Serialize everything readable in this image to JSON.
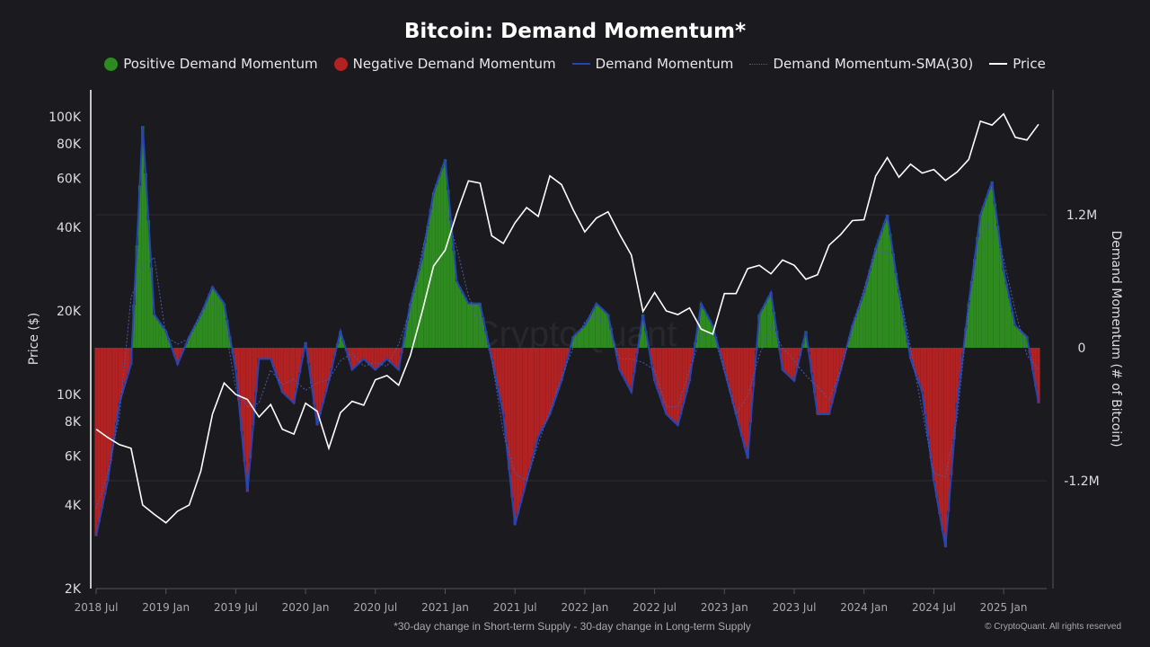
{
  "chart_data": {
    "type": "bar",
    "title": "Bitcoin: Demand Momentum*",
    "legend": [
      {
        "name": "Positive Demand Momentum",
        "color": "#2e8b1f",
        "kind": "dot"
      },
      {
        "name": "Negative Demand Momentum",
        "color": "#b22222",
        "kind": "dot"
      },
      {
        "name": "Demand Momentum",
        "color": "#2545b5",
        "kind": "line"
      },
      {
        "name": "Demand Momentum-SMA(30)",
        "color": "#4a5ab0",
        "kind": "dotted"
      },
      {
        "name": "Price",
        "color": "#ffffff",
        "kind": "line"
      }
    ],
    "legend_placement": "top",
    "ylabel_left": "Price ($)",
    "ylabel_right": "Demand Momentum (# of Bitcoin)",
    "y_left_scale": "log",
    "y_left_range": [
      2000,
      130000
    ],
    "y_left_ticks": [
      {
        "v": 2000,
        "label": "2K"
      },
      {
        "v": 4000,
        "label": "4K"
      },
      {
        "v": 6000,
        "label": "6K"
      },
      {
        "v": 8000,
        "label": "8K"
      },
      {
        "v": 10000,
        "label": "10K"
      },
      {
        "v": 20000,
        "label": "20K"
      },
      {
        "v": 40000,
        "label": "40K"
      },
      {
        "v": 60000,
        "label": "60K"
      },
      {
        "v": 80000,
        "label": "80K"
      },
      {
        "v": 100000,
        "label": "100K"
      }
    ],
    "y_right_range": [
      -2200000,
      2400000
    ],
    "y_right_ticks": [
      {
        "v": 1200000,
        "label": "1.2M"
      },
      {
        "v": 0,
        "label": "0"
      },
      {
        "v": -1200000,
        "label": "-1.2M"
      }
    ],
    "x_ticks": [
      "2018 Jul",
      "2019 Jan",
      "2019 Jul",
      "2020 Jan",
      "2020 Jul",
      "2021 Jan",
      "2021 Jul",
      "2022 Jan",
      "2022 Jul",
      "2023 Jan",
      "2023 Jul",
      "2024 Jan",
      "2024 Jul",
      "2025 Jan"
    ],
    "grid": "horizontal at right-axis ticks",
    "start_month": "2018-07",
    "dates_note_months": "monthly from 2018-07 to 2025-04",
    "price": [
      7500,
      7000,
      6600,
      6400,
      4000,
      3700,
      3450,
      3800,
      4000,
      5300,
      8500,
      11000,
      10000,
      9600,
      8300,
      9200,
      7500,
      7200,
      9300,
      8700,
      6400,
      8600,
      9450,
      9150,
      11300,
      11700,
      10800,
      13800,
      19700,
      29000,
      33100,
      45000,
      58800,
      57700,
      37300,
      35000,
      41500,
      47100,
      43800,
      61300,
      57000,
      46300,
      38500,
      43200,
      45500,
      37700,
      31800,
      19900,
      23300,
      20000,
      19400,
      20500,
      17200,
      16500,
      23100,
      23100,
      28400,
      29200,
      27200,
      30500,
      29200,
      26000,
      27000,
      34500,
      37700,
      42300,
      42600,
      61200,
      71300,
      60600,
      67500,
      62700,
      64600,
      59000,
      63300,
      70200,
      96400,
      93400,
      102400,
      84400,
      82500,
      94000
    ],
    "demand_momentum": [
      -1700000,
      -1200000,
      -500000,
      -150000,
      2000000,
      300000,
      150000,
      -150000,
      100000,
      300000,
      550000,
      400000,
      -200000,
      -1300000,
      -100000,
      -100000,
      -400000,
      -500000,
      50000,
      -700000,
      -300000,
      150000,
      -200000,
      -100000,
      -200000,
      -100000,
      -200000,
      400000,
      800000,
      1400000,
      1700000,
      600000,
      400000,
      400000,
      -100000,
      -600000,
      -1600000,
      -1200000,
      -800000,
      -600000,
      -300000,
      100000,
      200000,
      400000,
      300000,
      -200000,
      -400000,
      300000,
      -300000,
      -600000,
      -700000,
      -300000,
      400000,
      200000,
      -200000,
      -600000,
      -1000000,
      300000,
      500000,
      -200000,
      -300000,
      150000,
      -600000,
      -600000,
      -200000,
      200000,
      500000,
      900000,
      1200000,
      500000,
      -100000,
      -400000,
      -1200000,
      -1800000,
      -500000,
      400000,
      1200000,
      1500000,
      700000,
      200000,
      100000,
      -500000
    ]
  },
  "watermark": "CryptoQuant",
  "footnote": "*30-day change in Short-term Supply - 30-day change in Long-term Supply",
  "copyright": "© CryptoQuant. All rights reserved"
}
